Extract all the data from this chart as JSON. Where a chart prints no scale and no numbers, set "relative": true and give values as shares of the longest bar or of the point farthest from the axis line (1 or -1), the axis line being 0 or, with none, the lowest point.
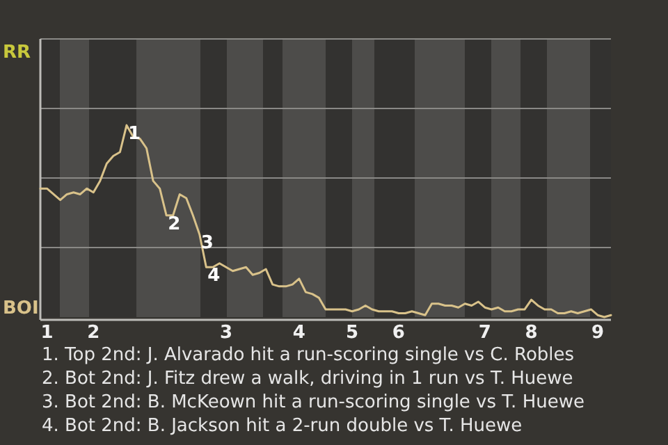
{
  "chart_data": {
    "type": "line",
    "relative": true,
    "categories": [
      null,
      "1",
      null,
      null,
      null,
      null,
      null,
      null,
      "2",
      null,
      null,
      null,
      null,
      null,
      null,
      null,
      null,
      null,
      null,
      null,
      null,
      null,
      null,
      null,
      null,
      null,
      null,
      null,
      "3",
      null,
      null,
      null,
      null,
      null,
      null,
      null,
      null,
      null,
      null,
      "4",
      null,
      null,
      null,
      null,
      null,
      null,
      null,
      "5",
      null,
      null,
      null,
      null,
      null,
      null,
      "6",
      null,
      null,
      null,
      null,
      null,
      null,
      null,
      null,
      null,
      null,
      null,
      null,
      "7",
      null,
      null,
      null,
      null,
      null,
      null,
      "8",
      null,
      null,
      null,
      null,
      null,
      null,
      null,
      null,
      null,
      "9",
      null,
      null
    ],
    "series": [
      {
        "color": "#d9c28a",
        "values": [
          0.67,
          0.67,
          0.64,
          0.61,
          0.64,
          0.65,
          0.64,
          0.67,
          0.65,
          0.71,
          0.8,
          0.84,
          0.86,
          1,
          0.94,
          0.93,
          0.88,
          0.71,
          0.67,
          0.53,
          0.53,
          0.64,
          0.62,
          0.53,
          0.43,
          0.26,
          0.26,
          0.28,
          0.26,
          0.24,
          0.25,
          0.26,
          0.22,
          0.23,
          0.25,
          0.17,
          0.16,
          0.16,
          0.17,
          0.2,
          0.13,
          0.12,
          0.1,
          0.04,
          0.04,
          0.04,
          0.04,
          0.03,
          0.04,
          0.06,
          0.04,
          0.03,
          0.03,
          0.03,
          0.02,
          0.02,
          0.03,
          0.02,
          0.01,
          0.07,
          0.07,
          0.06,
          0.06,
          0.05,
          0.07,
          0.06,
          0.08,
          0.05,
          0.04,
          0.05,
          0.03,
          0.03,
          0.04,
          0.04,
          0.09,
          0.06,
          0.04,
          0.04,
          0.02,
          0.02,
          0.03,
          0.02,
          0.03,
          0.04,
          0.01,
          0,
          0.01
        ],
        "name": null
      }
    ],
    "line_style": "solid",
    "ref_lines": [
      {
        "axis": "y",
        "value": 0.3625,
        "color": "#8a8986"
      },
      {
        "axis": "y",
        "value": 0.725,
        "color": "#8a8986"
      },
      {
        "axis": "y",
        "value": 1.0875,
        "color": "#8a8986"
      },
      {
        "axis": "y",
        "value": 1.45,
        "color": "#8a8986"
      }
    ],
    "annotations": [
      "RR",
      "BOI",
      {
        "text": "1",
        "y": 1
      },
      {
        "text": "2",
        "y": 0.53
      },
      {
        "text": "3",
        "y": 0.43
      },
      {
        "text": "4",
        "y": 0.26
      },
      "1. Top 2nd: J. Alvarado hit a run-scoring single vs C. Robles",
      "2. Bot 2nd: J. Fitz drew a walk, driving in 1 run vs T. Huewe",
      "3. Bot 2nd: B. McKeown hit a run-scoring single vs T. Huewe",
      "4. Bot 2nd: B. Jackson hit a 2-run double vs T. Huewe"
    ]
  }
}
